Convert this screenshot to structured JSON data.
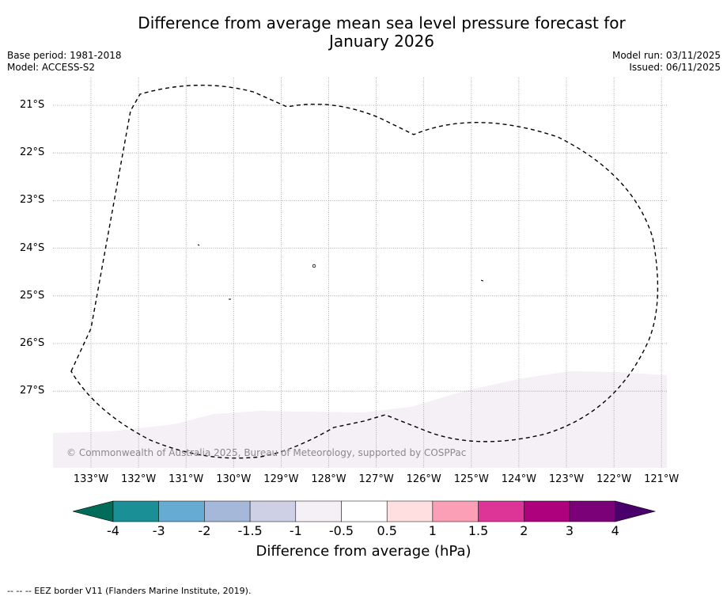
{
  "title_line1": "Difference from average mean sea level pressure forecast for",
  "title_line2": "January 2026",
  "base_period": "Base period: 1981-2018",
  "model": "Model: ACCESS-S2",
  "model_run": "Model run: 03/11/2025",
  "issued": "Issued: 06/11/2025",
  "latitudes": [
    "21°S",
    "22°S",
    "23°S",
    "24°S",
    "25°S",
    "26°S",
    "27°S"
  ],
  "longitudes": [
    "133°W",
    "132°W",
    "131°W",
    "130°W",
    "129°W",
    "128°W",
    "127°W",
    "126°W",
    "125°W",
    "124°W",
    "123°W",
    "122°W",
    "121°W"
  ],
  "copyright": "© Commonwealth of Australia 2025, Bureau of Meteorology, supported by COSPPac",
  "colorbar": {
    "ticks": [
      "-4",
      "-3",
      "-2",
      "-1.5",
      "-1",
      "-0.5",
      "0.5",
      "1",
      "1.5",
      "2",
      "3",
      "4"
    ],
    "colors": [
      "#1a9096",
      "#66abd1",
      "#a6b8d9",
      "#ced0e6",
      "#f5eff6",
      "#ffffff",
      "#ffdfe0",
      "#fa9fb5",
      "#dd3497",
      "#ae017e",
      "#7a0177"
    ],
    "under_color": "#016c59",
    "over_color": "#49006a",
    "label": "Difference from average (hPa)"
  },
  "shaded_region_color": "#f5eff6",
  "footer": "--  --  -- EEZ border V11 (Flanders Marine Institute, 2019)."
}
